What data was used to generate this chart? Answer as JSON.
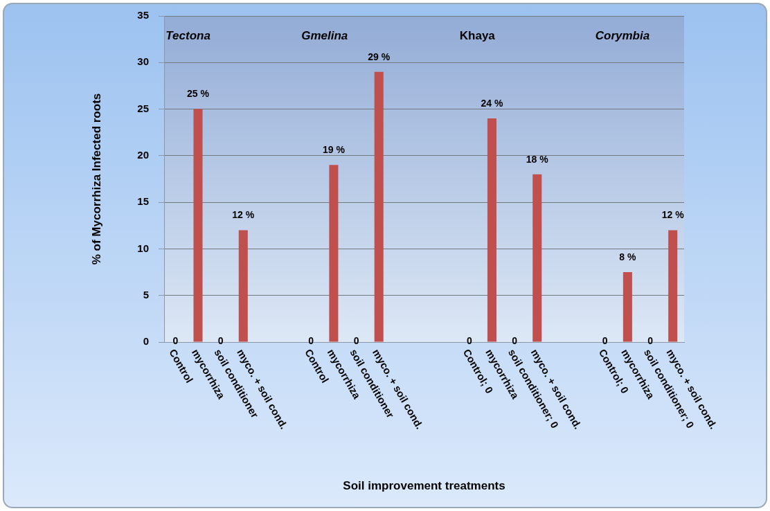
{
  "chart_data": {
    "type": "bar",
    "xlabel": "Soil improvement treatments",
    "ylabel": "% of Mycorrhiza Infected roots",
    "categories": [
      "Control",
      "mycorrhiza",
      "soil conditioner",
      "myco. + soil cond.",
      null,
      null,
      "Control",
      "mycorrhiza",
      "soil conditioner",
      "myco. + soil cond.",
      null,
      null,
      null,
      "Control; 0",
      "mycorrhiza",
      "soil conditioner; 0",
      "myco. + soil cond.",
      null,
      null,
      "Control; 0",
      "mycorrhiza",
      "soil conditioner; 0",
      "myco. + soil cond."
    ],
    "values": [
      0,
      25,
      0,
      12,
      null,
      null,
      0,
      19,
      0,
      29,
      null,
      null,
      null,
      0,
      24,
      0,
      18,
      null,
      null,
      0,
      7.5,
      0,
      12
    ],
    "value_labels": [
      "0",
      "25 %",
      "0",
      "12 %",
      null,
      null,
      "0",
      "19 %",
      "0",
      "29 %",
      null,
      null,
      null,
      "0",
      "24 %",
      "0",
      "18 %",
      null,
      null,
      "0",
      "8 %",
      "0",
      "12 %"
    ],
    "color": "#c0504d",
    "ylim": [
      0,
      35
    ],
    "yticks": [
      0,
      5,
      10,
      15,
      20,
      25,
      30,
      35
    ],
    "grid": "y",
    "annotations": [
      "Tectona",
      "Gmelina",
      "Khaya",
      "Corymbia"
    ]
  }
}
